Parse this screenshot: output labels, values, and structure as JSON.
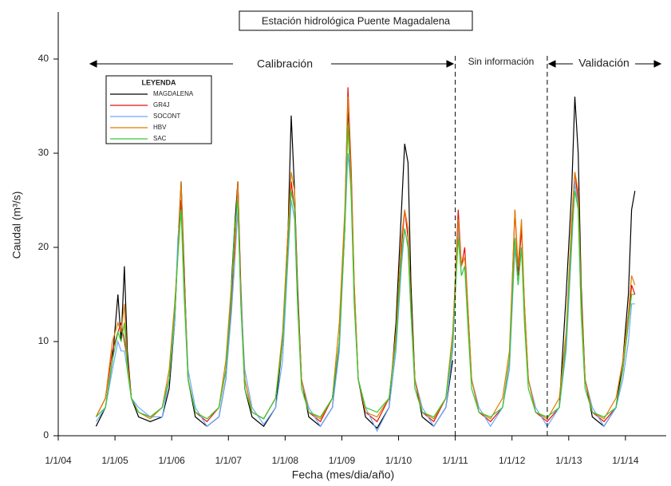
{
  "chart_data": {
    "type": "line",
    "title": "Estación hidrológica Puente Magadalena",
    "xlabel": "Fecha (mes/dia/año)",
    "ylabel": "Caudal (m³/s)",
    "legend_title": "LEYENDA",
    "regions": [
      "Calibración",
      "Sin información",
      "Validación"
    ],
    "dividers": [
      "1/1/11",
      "8/15/12"
    ],
    "xlim": [
      "1/1/04",
      "9/20/14"
    ],
    "xticks": [
      "1/1/04",
      "1/1/05",
      "1/1/06",
      "1/1/07",
      "1/1/08",
      "1/1/09",
      "1/1/10",
      "1/1/11",
      "1/1/12",
      "1/1/13",
      "1/1/14"
    ],
    "ylim": [
      0,
      45
    ],
    "yticks": [
      0,
      10,
      20,
      30,
      40
    ],
    "x": [
      "9/1/04",
      "11/1/04",
      "12/15/04",
      "1/20/05",
      "2/10/05",
      "3/1/05",
      "3/20/05",
      "4/15/05",
      "6/1/05",
      "8/15/05",
      "11/1/05",
      "12/15/05",
      "1/20/06",
      "2/10/06",
      "3/1/06",
      "3/20/06",
      "4/15/06",
      "6/1/06",
      "8/15/06",
      "11/1/06",
      "12/15/06",
      "1/20/07",
      "2/10/07",
      "3/1/07",
      "3/20/07",
      "4/15/07",
      "6/1/07",
      "8/15/07",
      "11/1/07",
      "12/15/07",
      "1/20/08",
      "2/10/08",
      "3/1/08",
      "3/20/08",
      "4/15/08",
      "6/1/08",
      "8/15/08",
      "11/1/08",
      "12/15/08",
      "1/20/09",
      "2/10/09",
      "3/1/09",
      "3/20/09",
      "4/15/09",
      "6/1/09",
      "8/15/09",
      "11/1/09",
      "12/15/09",
      "1/20/10",
      "2/10/10",
      "3/1/10",
      "3/20/10",
      "4/15/10",
      "6/1/10",
      "8/15/10",
      "11/1/10",
      "12/15/10",
      "1/20/11",
      "2/10/11",
      "3/1/11",
      "3/20/11",
      "4/15/11",
      "6/1/11",
      "8/15/11",
      "11/1/11",
      "12/15/11",
      "1/20/12",
      "2/10/12",
      "3/1/12",
      "3/20/12",
      "4/15/12",
      "6/1/12",
      "8/15/12",
      "11/1/12",
      "12/15/12",
      "1/20/13",
      "2/10/13",
      "3/1/13",
      "3/20/13",
      "4/15/13",
      "6/1/13",
      "8/15/13",
      "11/1/13",
      "12/15/13",
      "1/20/14",
      "2/10/14",
      "3/1/14"
    ],
    "series": [
      {
        "name": "MAGDALENA",
        "color": "#000000",
        "values": [
          1,
          3,
          8,
          15,
          10,
          18,
          9,
          4,
          2,
          1.5,
          2,
          5,
          12,
          20,
          27,
          18,
          6,
          2,
          1,
          2,
          6,
          16,
          22,
          27,
          15,
          5,
          2,
          1,
          3,
          10,
          22,
          34,
          26,
          16,
          6,
          2,
          1,
          3,
          10,
          22,
          35,
          27,
          15,
          6,
          2,
          0.8,
          3,
          12,
          24,
          31,
          29,
          16,
          6,
          2,
          1,
          3,
          8,
          null,
          null,
          null,
          null,
          null,
          null,
          null,
          null,
          null,
          null,
          null,
          null,
          null,
          null,
          null,
          null,
          3,
          15,
          26,
          36,
          30,
          16,
          6,
          2,
          1,
          3,
          8,
          15,
          24,
          26
        ]
      },
      {
        "name": "GR4J",
        "color": "#e01010",
        "values": [
          2,
          4,
          9,
          11,
          12,
          10,
          8,
          4,
          2.5,
          2,
          3,
          6,
          13,
          20,
          25,
          16,
          6,
          2.5,
          1.5,
          3,
          7,
          14,
          20,
          27,
          16,
          6,
          2.5,
          1.8,
          4,
          10,
          20,
          27,
          24,
          15,
          6,
          2.5,
          1.5,
          4,
          10,
          23,
          37,
          28,
          16,
          6,
          2.5,
          1.5,
          4,
          10,
          20,
          24,
          21,
          14,
          6,
          2.5,
          1.5,
          4,
          10,
          24,
          18,
          20,
          14,
          6,
          2.5,
          1.5,
          3,
          8,
          24,
          17,
          22,
          14,
          6,
          2.5,
          1.5,
          3,
          10,
          22,
          28,
          25,
          14,
          6,
          2.5,
          1.5,
          3,
          7,
          12,
          16,
          15
        ]
      },
      {
        "name": "SOCONT",
        "color": "#6fa8ff",
        "values": [
          1.5,
          3,
          7,
          10,
          9,
          9,
          7,
          4,
          3,
          2,
          2,
          6,
          12,
          21,
          24,
          17,
          7,
          3,
          1,
          2,
          6,
          13,
          18,
          24,
          15,
          7,
          3,
          1.2,
          3,
          8,
          19,
          25,
          23,
          14,
          6,
          3,
          1,
          3,
          9,
          22,
          30,
          26,
          14,
          6,
          3,
          0.5,
          3,
          9,
          18,
          22,
          20,
          13,
          6,
          3,
          1,
          3,
          9,
          22,
          17,
          18,
          13,
          6,
          3,
          1,
          3,
          7,
          20,
          16,
          20,
          13,
          6,
          3,
          1,
          3,
          9,
          20,
          27,
          24,
          13,
          6,
          3,
          1,
          3,
          6,
          10,
          14,
          14
        ]
      },
      {
        "name": "HBV",
        "color": "#e07b00",
        "values": [
          2,
          4,
          10,
          12,
          11,
          14,
          8,
          4,
          2.5,
          1.8,
          3,
          7,
          14,
          19,
          27,
          17,
          6,
          2.5,
          1.8,
          3,
          8,
          16,
          19,
          27,
          14,
          6,
          2.5,
          1.8,
          4,
          11,
          22,
          28,
          26,
          15,
          6,
          2.5,
          1.8,
          4,
          12,
          24,
          36,
          27,
          16,
          6,
          2.5,
          2,
          4,
          11,
          21,
          24,
          22,
          14,
          6,
          2.5,
          1.8,
          4,
          11,
          23,
          18,
          19,
          14,
          6,
          2.5,
          1.8,
          4,
          9,
          24,
          18,
          23,
          14,
          6,
          2.5,
          1.8,
          4,
          11,
          23,
          28,
          26,
          15,
          6,
          2.5,
          1.8,
          4,
          8,
          13,
          17,
          16
        ]
      },
      {
        "name": "SAC",
        "color": "#33cc33",
        "values": [
          2,
          3,
          8,
          11,
          10,
          12,
          7,
          4,
          2.5,
          2,
          3,
          6,
          13,
          19,
          24,
          15,
          6,
          2.5,
          1.8,
          3,
          7,
          15,
          22,
          25,
          14,
          5,
          2.5,
          1.8,
          4,
          10,
          20,
          26,
          24,
          14,
          5,
          2.5,
          2,
          4,
          10,
          22,
          33,
          25,
          14,
          6,
          3,
          2.5,
          4,
          10,
          19,
          22,
          20,
          13,
          5,
          2.5,
          2,
          4,
          10,
          21,
          17,
          18,
          12,
          5,
          2.5,
          2,
          3,
          8,
          21,
          16,
          20,
          12,
          5,
          2.5,
          2,
          3,
          10,
          21,
          26,
          24,
          13,
          5,
          2.5,
          2,
          3,
          7,
          12,
          15,
          15
        ]
      }
    ]
  }
}
